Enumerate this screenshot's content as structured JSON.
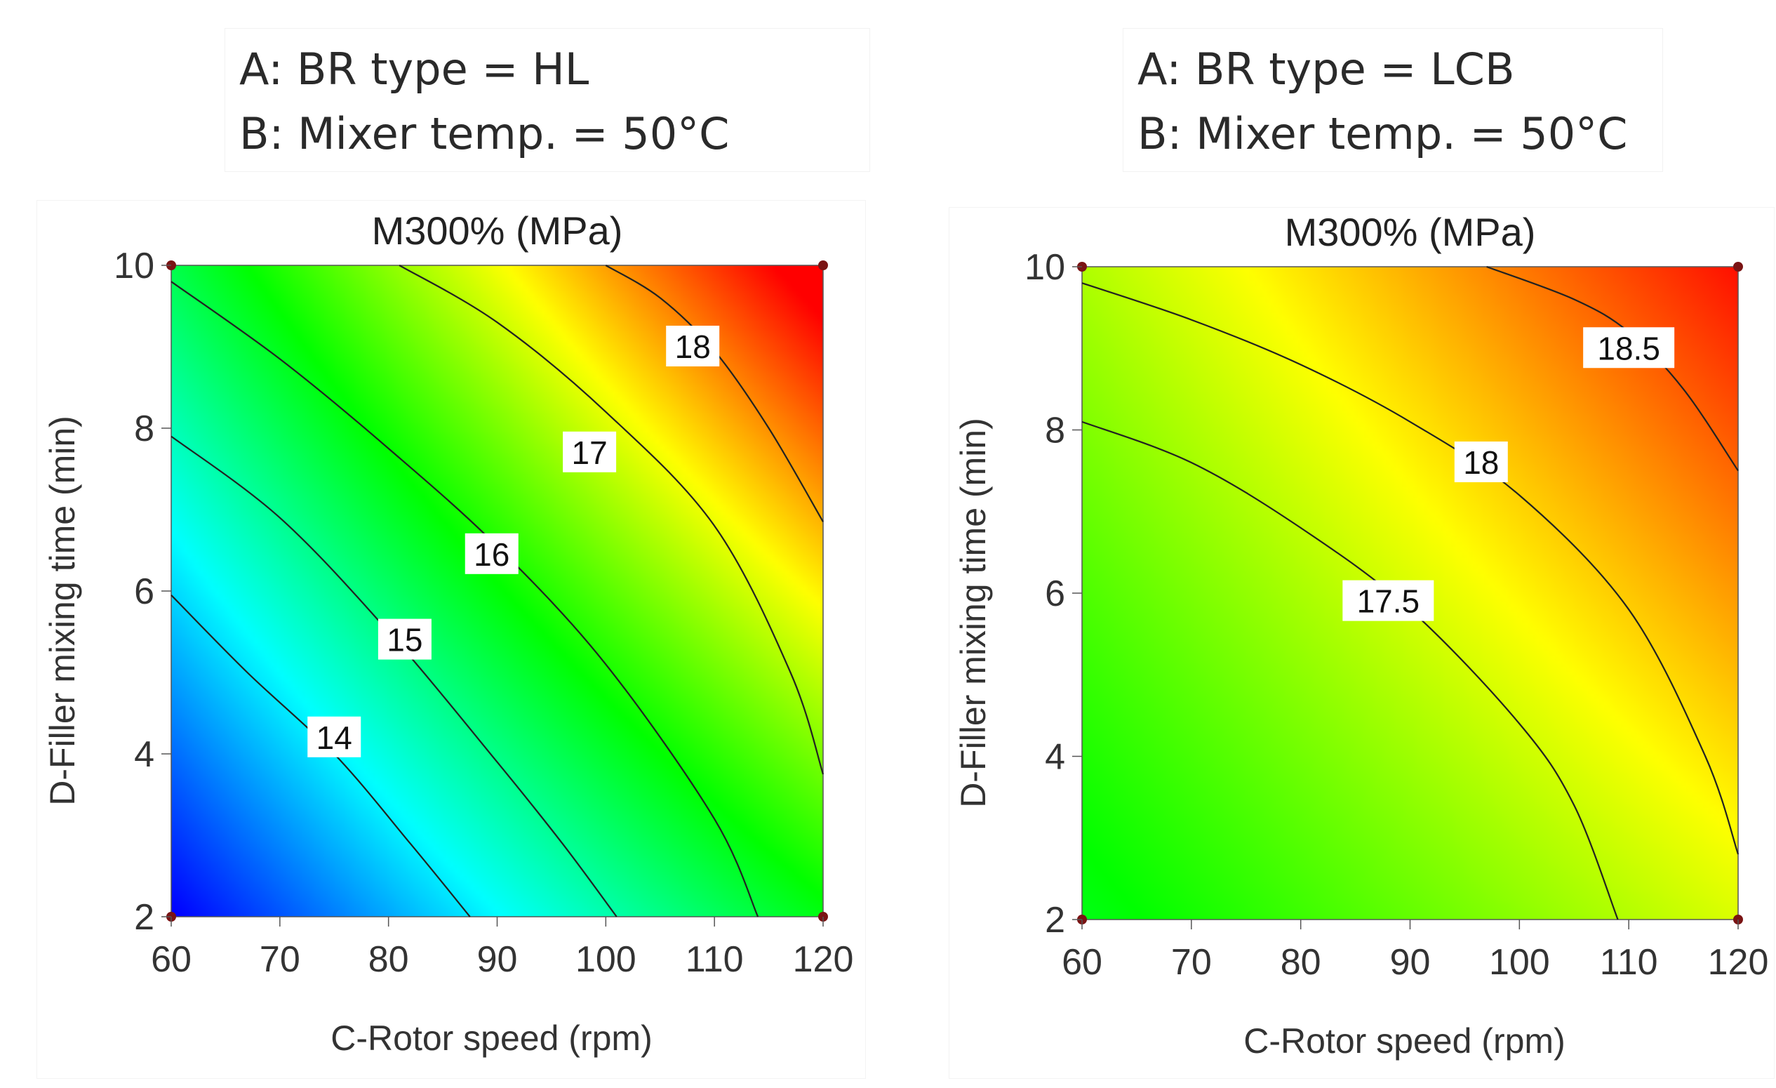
{
  "conditions": [
    {
      "line_a": "A: BR type = HL",
      "line_b": "B: Mixer temp. = 50°C"
    },
    {
      "line_a": "A: BR type = LCB",
      "line_b": "B: Mixer temp. = 50°C"
    }
  ],
  "chart_data": [
    {
      "type": "contour",
      "title": "M300% (MPa)",
      "xlabel": "C-Rotor speed (rpm)",
      "ylabel": "D-Filler mixing time (min)",
      "xlim": [
        60,
        120
      ],
      "ylim": [
        2,
        10
      ],
      "xticks": [
        "60",
        "70",
        "80",
        "90",
        "100",
        "110",
        "120"
      ],
      "yticks": [
        "2",
        "4",
        "6",
        "8",
        "10"
      ],
      "colormap": [
        "#0000ff",
        "#00ffff",
        "#00ff00",
        "#ffff00",
        "#ff0000"
      ],
      "corner_points": [
        [
          60,
          2
        ],
        [
          60,
          10
        ],
        [
          120,
          2
        ],
        [
          120,
          10
        ]
      ],
      "contours": [
        {
          "level": "14",
          "points": [
            [
              60,
              5.95
            ],
            [
              67,
              5.0
            ],
            [
              75,
              4.0
            ],
            [
              82,
              2.9
            ],
            [
              87.5,
              2.0
            ]
          ],
          "label_at": [
            75.0,
            4.2
          ]
        },
        {
          "level": "15",
          "points": [
            [
              60,
              7.9
            ],
            [
              70,
              6.9
            ],
            [
              80,
              5.5
            ],
            [
              90,
              3.9
            ],
            [
              96,
              2.9
            ],
            [
              101,
              2.0
            ]
          ],
          "label_at": [
            81.5,
            5.4
          ]
        },
        {
          "level": "16",
          "points": [
            [
              60,
              9.8
            ],
            [
              70,
              8.85
            ],
            [
              80,
              7.75
            ],
            [
              90,
              6.55
            ],
            [
              100,
              5.1
            ],
            [
              110,
              3.2
            ],
            [
              114,
              2.0
            ]
          ],
          "label_at": [
            89.5,
            6.45
          ]
        },
        {
          "level": "17",
          "points": [
            [
              81,
              10.0
            ],
            [
              90,
              9.3
            ],
            [
              100,
              8.2
            ],
            [
              110,
              6.8
            ],
            [
              117,
              5.0
            ],
            [
              120,
              3.75
            ]
          ],
          "label_at": [
            98.5,
            7.7
          ]
        },
        {
          "level": "18",
          "points": [
            [
              100,
              10.0
            ],
            [
              105,
              9.6
            ],
            [
              110,
              8.95
            ],
            [
              115,
              8.0
            ],
            [
              120,
              6.85
            ]
          ],
          "label_at": [
            108.0,
            9.0
          ]
        }
      ]
    },
    {
      "type": "contour",
      "title": "M300% (MPa)",
      "xlabel": "C-Rotor speed (rpm)",
      "ylabel": "D-Filler mixing time (min)",
      "xlim": [
        60,
        120
      ],
      "ylim": [
        2,
        10
      ],
      "xticks": [
        "60",
        "70",
        "80",
        "90",
        "100",
        "110",
        "120"
      ],
      "yticks": [
        "2",
        "4",
        "6",
        "8",
        "10"
      ],
      "colormap": [
        "#0000ff",
        "#00ffff",
        "#00ff00",
        "#ffff00",
        "#ff0000"
      ],
      "corner_points": [
        [
          60,
          2
        ],
        [
          60,
          10
        ],
        [
          120,
          2
        ],
        [
          120,
          10
        ]
      ],
      "contours": [
        {
          "level": "17.5",
          "points": [
            [
              60,
              8.1
            ],
            [
              70,
              7.6
            ],
            [
              80,
              6.8
            ],
            [
              90,
              5.8
            ],
            [
              100,
              4.4
            ],
            [
              105,
              3.4
            ],
            [
              109,
              2.0
            ]
          ],
          "label_at": [
            88.0,
            5.9
          ]
        },
        {
          "level": "18",
          "points": [
            [
              60,
              9.8
            ],
            [
              70,
              9.35
            ],
            [
              80,
              8.8
            ],
            [
              90,
              8.1
            ],
            [
              100,
              7.2
            ],
            [
              110,
              5.8
            ],
            [
              117,
              4.0
            ],
            [
              120,
              2.8
            ]
          ],
          "label_at": [
            96.5,
            7.6
          ]
        },
        {
          "level": "18.5",
          "points": [
            [
              97,
              10.0
            ],
            [
              105,
              9.6
            ],
            [
              110,
              9.2
            ],
            [
              115,
              8.5
            ],
            [
              120,
              7.5
            ]
          ],
          "label_at": [
            110.0,
            9.0
          ]
        }
      ]
    }
  ]
}
